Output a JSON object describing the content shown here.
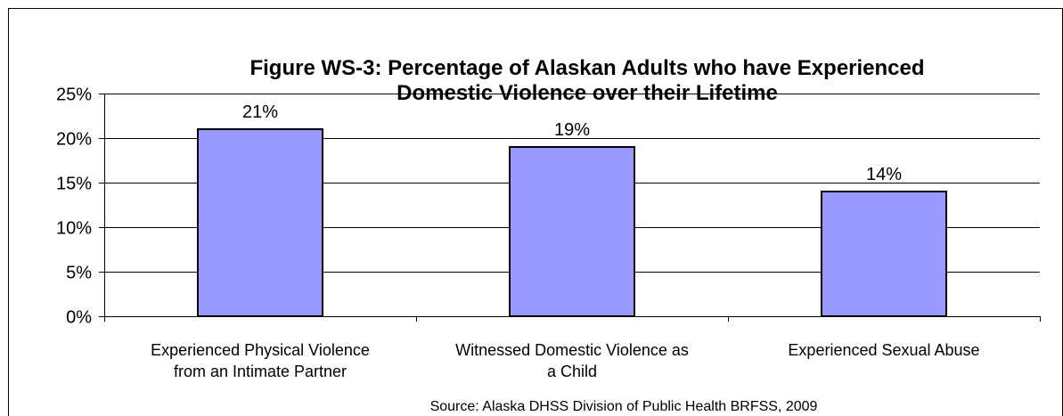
{
  "chart_data": {
    "type": "bar",
    "title_lines": [
      "Figure WS-3: Percentage of Alaskan Adults who have Experienced",
      "Domestic Violence over their Lifetime"
    ],
    "categories": [
      [
        "Experienced Physical Violence",
        "from an Intimate Partner"
      ],
      [
        "Witnessed Domestic Violence as",
        "a Child"
      ],
      [
        "Experienced Sexual Abuse"
      ]
    ],
    "values": [
      21,
      19,
      14
    ],
    "data_labels": [
      "21%",
      "19%",
      "14%"
    ],
    "ylim": [
      0,
      25
    ],
    "yticks": [
      0,
      5,
      10,
      15,
      20,
      25
    ],
    "ytick_labels": [
      "0%",
      "5%",
      "10%",
      "15%",
      "20%",
      "25%"
    ],
    "grid": true,
    "source": "Source: Alaska DHSS Division of Public Health BRFSS, 2009",
    "colors": {
      "bar": "#9999ff",
      "bar_stroke": "#000000"
    }
  }
}
